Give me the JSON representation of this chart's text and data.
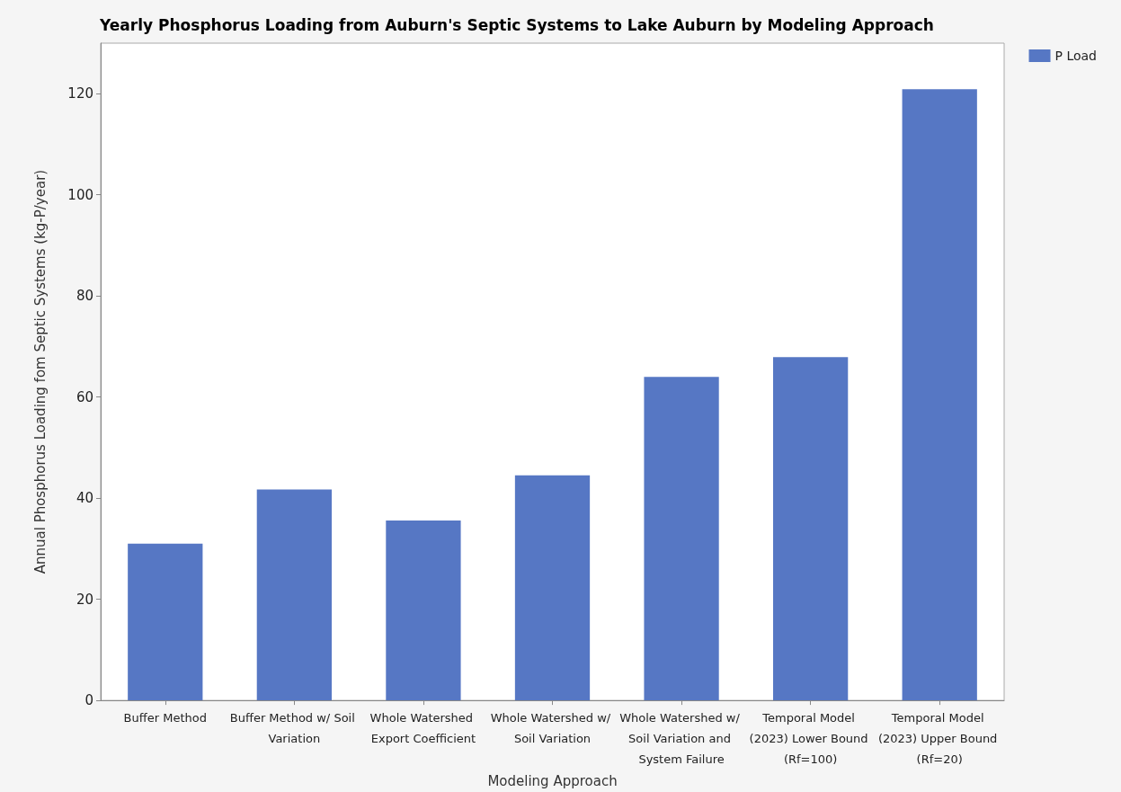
{
  "chart_data": {
    "type": "bar",
    "title": "Yearly Phosphorus Loading from Auburn's Septic Systems to Lake Auburn by Modeling Approach",
    "xlabel": "Modeling Approach",
    "ylabel": "Annual Phosphorus Loading fom Septic Systems (kg-P/year)",
    "categories": [
      "Buffer Method",
      "Buffer Method w/ Soil Variation",
      "Whole Watershed Export Coefficient",
      "Whole Watershed w/ Soil Variation",
      "Whole Watershed w/ Soil Variation and System Failure",
      "Temporal Model (2023) Lower Bound (Rf=100)",
      "Temporal Model (2023) Upper Bound (Rf=20)"
    ],
    "series": [
      {
        "name": "P Load",
        "color": "#5677c4",
        "values": [
          31,
          41.7,
          35.6,
          44.5,
          64,
          67.9,
          120.9
        ]
      }
    ],
    "ylim": [
      0,
      130
    ],
    "yticks": [
      0,
      20,
      40,
      60,
      80,
      100,
      120
    ],
    "grid": false,
    "legend": "top right"
  }
}
